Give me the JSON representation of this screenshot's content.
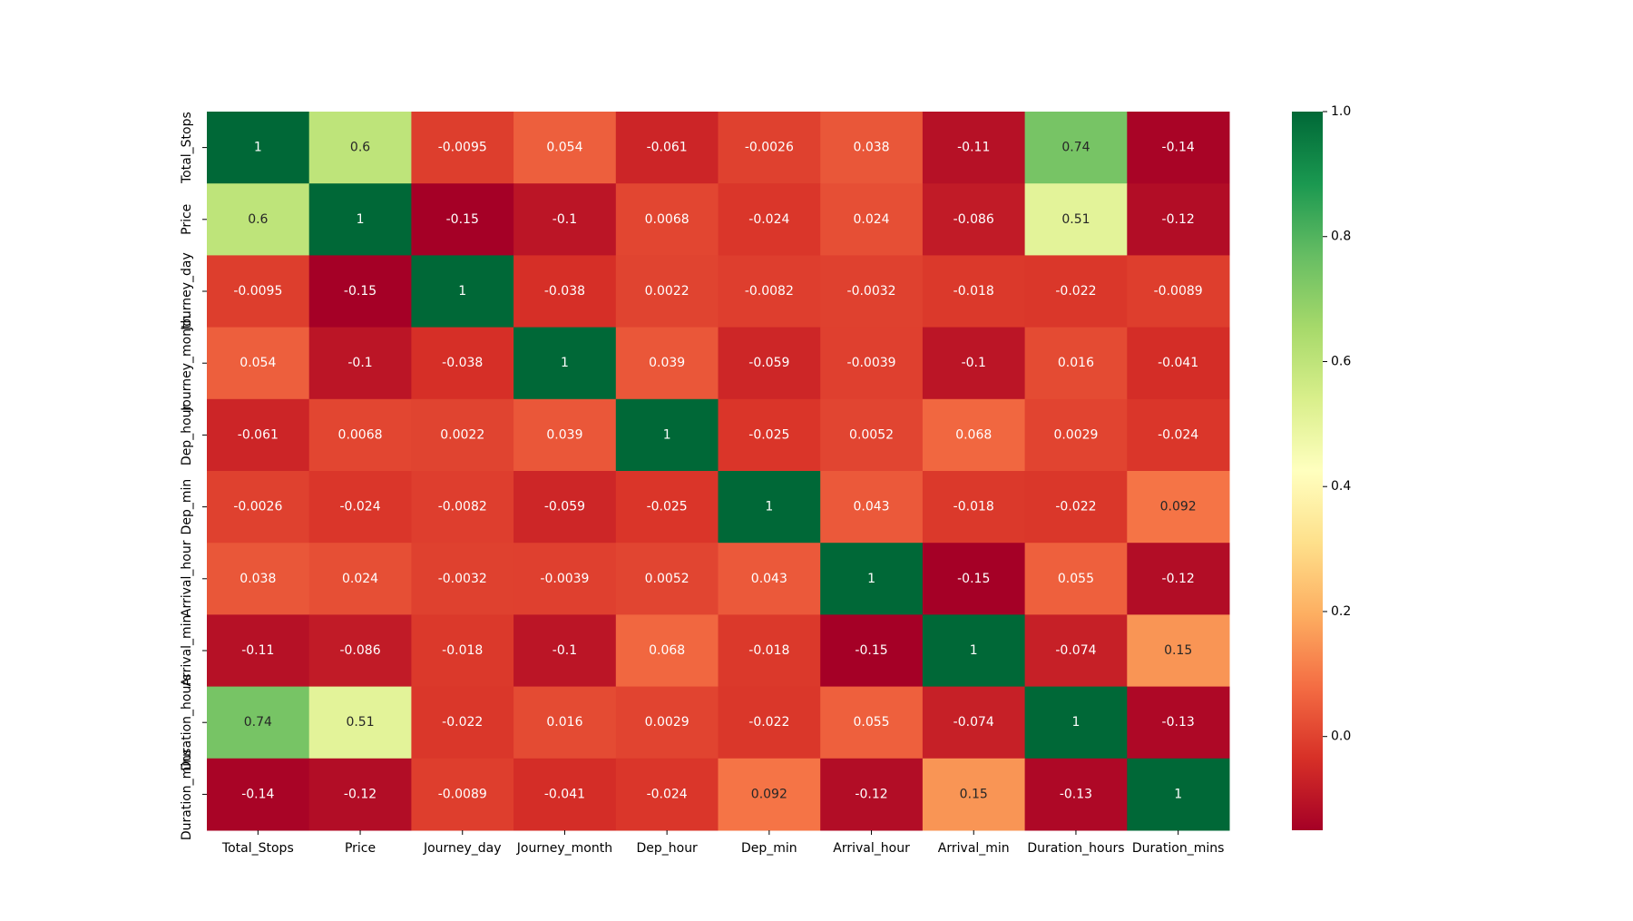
{
  "chart_data": {
    "type": "heatmap",
    "x_labels": [
      "Total_Stops",
      "Price",
      "Journey_day",
      "Journey_month",
      "Dep_hour",
      "Dep_min",
      "Arrival_hour",
      "Arrival_min",
      "Duration_hours",
      "Duration_mins"
    ],
    "y_labels": [
      "Total_Stops",
      "Price",
      "Journey_day",
      "Journey_month",
      "Dep_hour",
      "Dep_min",
      "Arrival_hour",
      "Arrival_min",
      "Duration_hours",
      "Duration_mins"
    ],
    "values": [
      [
        1,
        0.6,
        -0.0095,
        0.054,
        -0.061,
        -0.0026,
        0.038,
        -0.11,
        0.74,
        -0.14
      ],
      [
        0.6,
        1,
        -0.15,
        -0.1,
        0.0068,
        -0.024,
        0.024,
        -0.086,
        0.51,
        -0.12
      ],
      [
        -0.0095,
        -0.15,
        1,
        -0.038,
        0.0022,
        -0.0082,
        -0.0032,
        -0.018,
        -0.022,
        -0.0089
      ],
      [
        0.054,
        -0.1,
        -0.038,
        1,
        0.039,
        -0.059,
        -0.0039,
        -0.1,
        0.016,
        -0.041
      ],
      [
        -0.061,
        0.0068,
        0.0022,
        0.039,
        1,
        -0.025,
        0.0052,
        0.068,
        0.0029,
        -0.024
      ],
      [
        -0.0026,
        -0.024,
        -0.0082,
        -0.059,
        -0.025,
        1,
        0.043,
        -0.018,
        -0.022,
        0.092
      ],
      [
        0.038,
        0.024,
        -0.0032,
        -0.0039,
        0.0052,
        0.043,
        1,
        -0.15,
        0.055,
        -0.12
      ],
      [
        -0.11,
        -0.086,
        -0.018,
        -0.1,
        0.068,
        -0.018,
        -0.15,
        1,
        -0.074,
        0.15
      ],
      [
        0.74,
        0.51,
        -0.022,
        0.016,
        0.0029,
        -0.022,
        0.055,
        -0.074,
        1,
        -0.13
      ],
      [
        -0.14,
        -0.12,
        -0.0089,
        -0.041,
        -0.024,
        0.092,
        -0.12,
        0.15,
        -0.13,
        1
      ]
    ],
    "colormap": "RdYlGn",
    "vmin": -0.15,
    "vmax": 1.0,
    "annotated": true,
    "colorbar": {
      "ticks": [
        "0.0",
        "0.2",
        "0.4",
        "0.6",
        "0.8",
        "1.0"
      ]
    },
    "title": "",
    "xlabel": "",
    "ylabel": "",
    "legend": "colorbar-right"
  }
}
